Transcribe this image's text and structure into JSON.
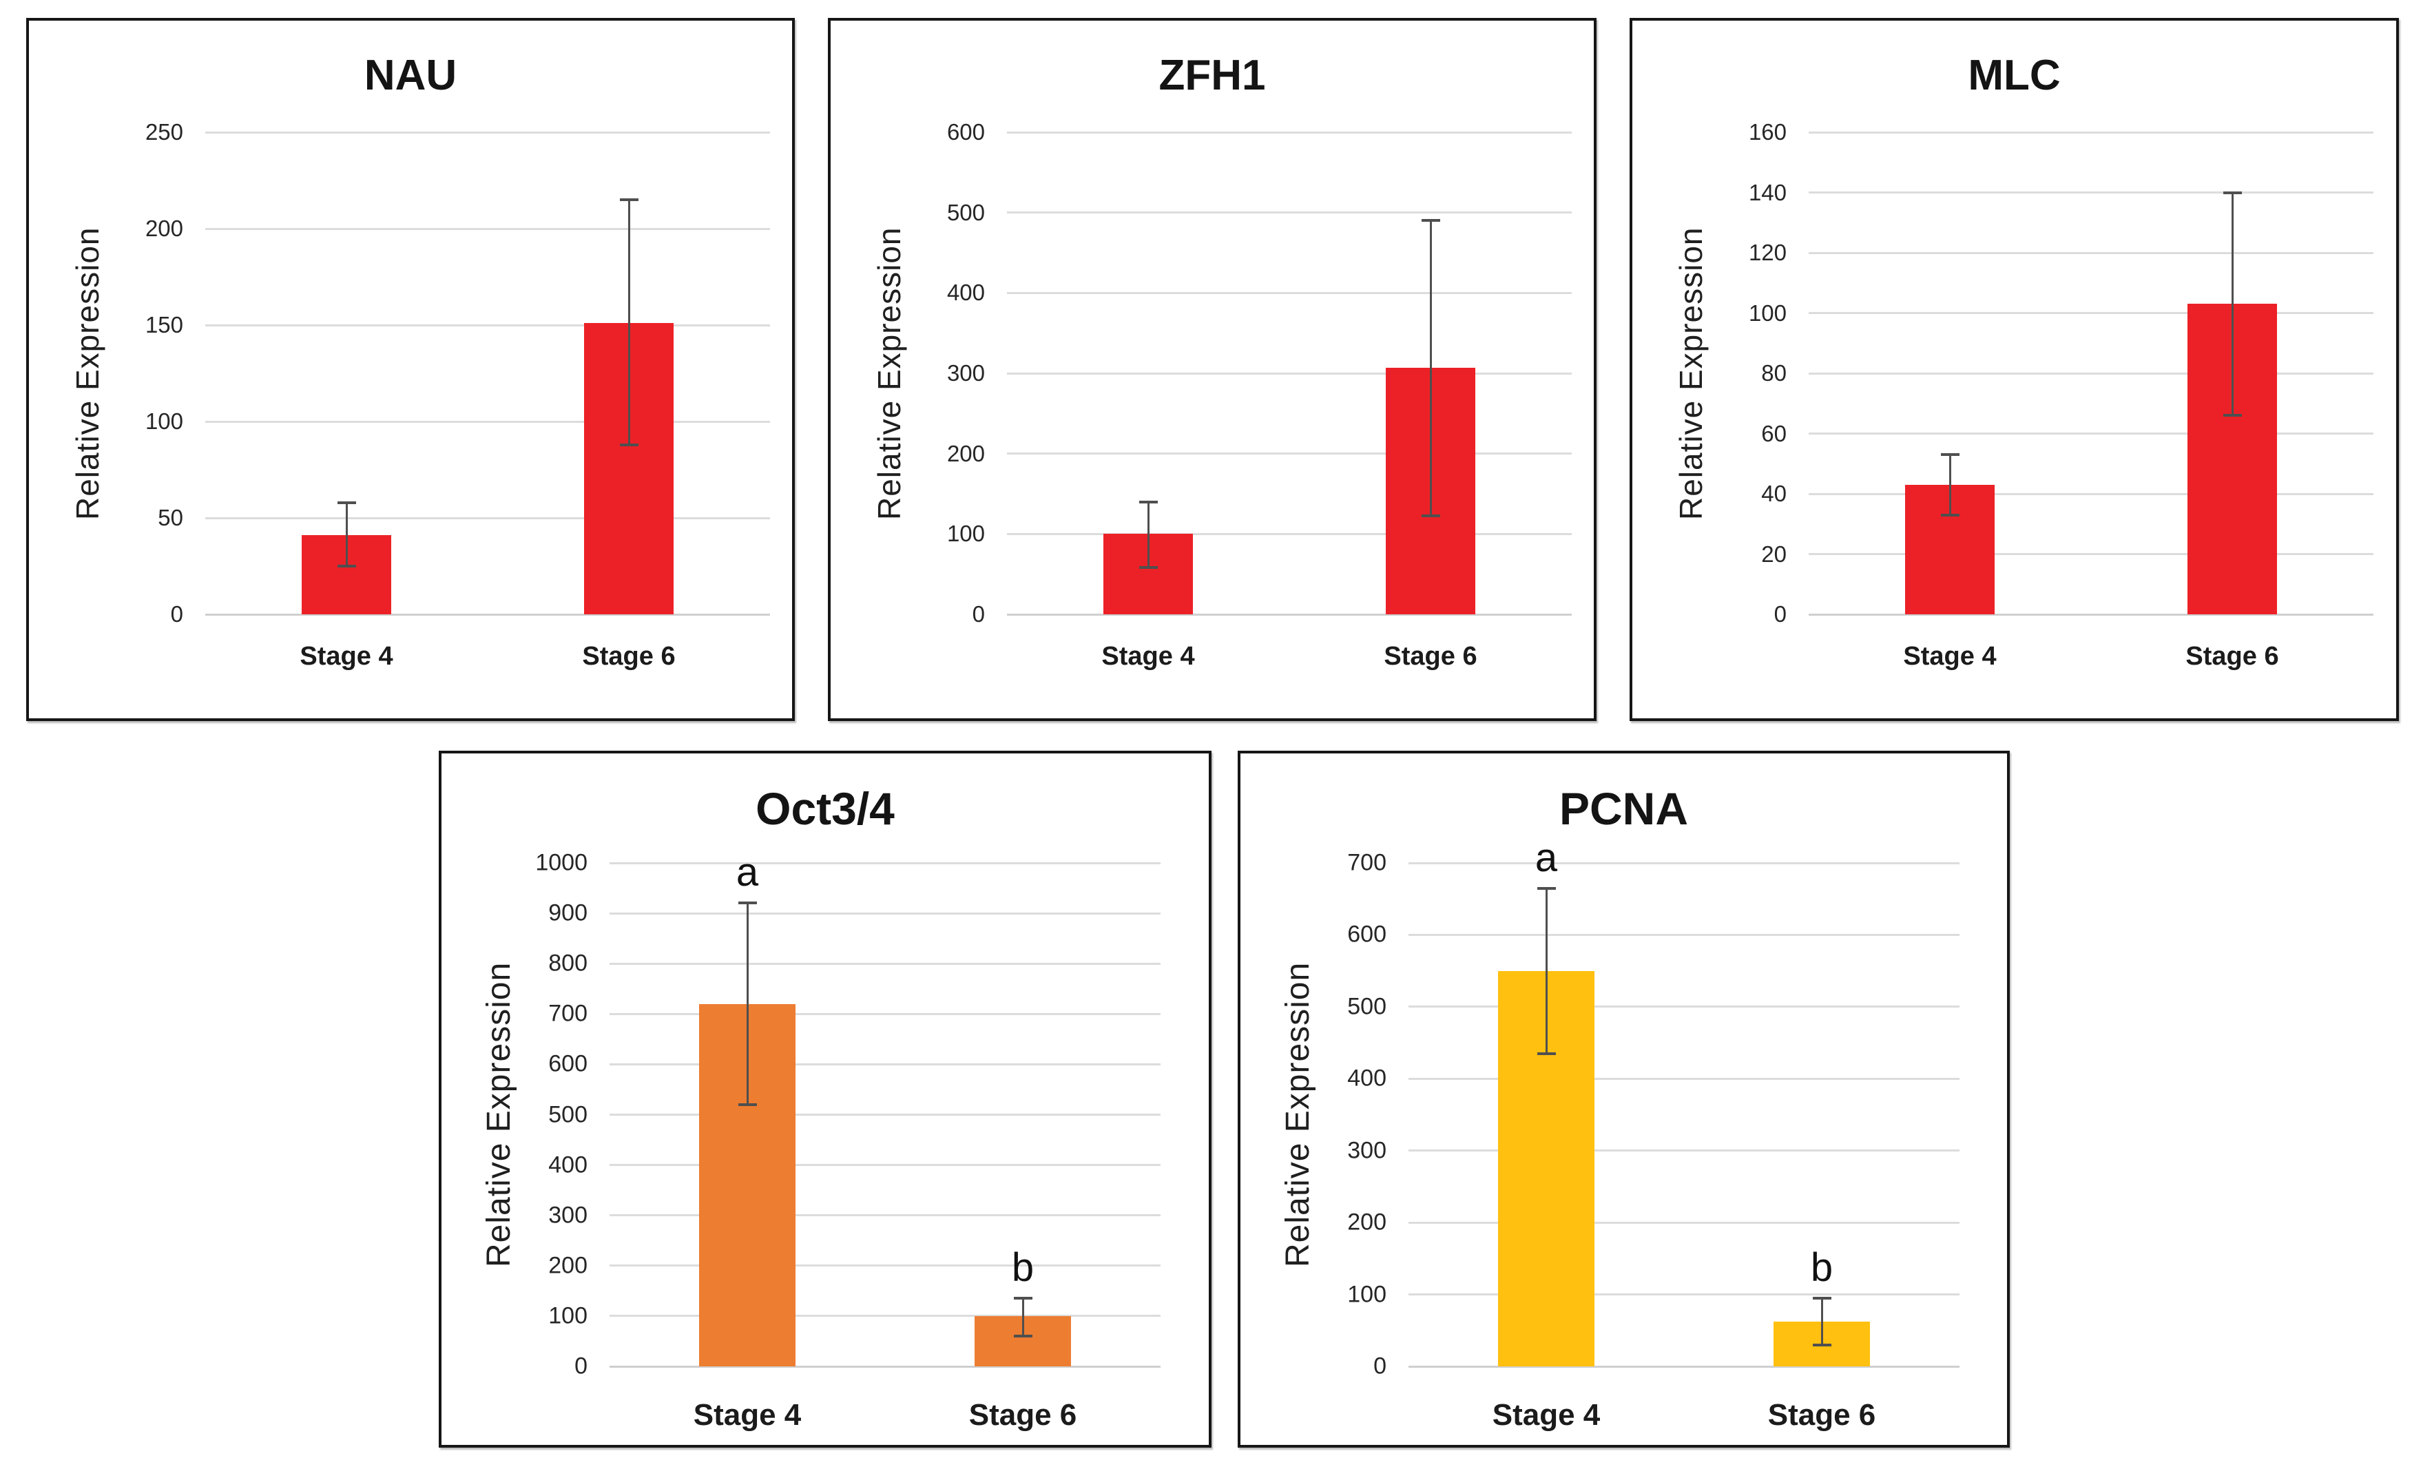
{
  "figure": {
    "ylabel": "Relative Expression",
    "categories": [
      "Stage 4",
      "Stage 6"
    ],
    "error_bar_color": "#4f4f4f",
    "gridline_color": "#dcdcdc"
  },
  "chart_data": [
    {
      "type": "bar",
      "title": "NAU",
      "ylabel": "Relative Expression",
      "categories": [
        "Stage 4",
        "Stage 6"
      ],
      "values": [
        41,
        151
      ],
      "error_low": [
        25,
        88
      ],
      "error_high": [
        58,
        215
      ],
      "sig_labels": [
        "",
        ""
      ],
      "ylim": [
        0,
        250
      ],
      "yticks": [
        0,
        50,
        100,
        150,
        200,
        250
      ],
      "bar_color": "#EC2127",
      "grid": true,
      "legend": false
    },
    {
      "type": "bar",
      "title": "ZFH1",
      "ylabel": "Relative Expression",
      "categories": [
        "Stage 4",
        "Stage 6"
      ],
      "values": [
        100,
        307
      ],
      "error_low": [
        58,
        123
      ],
      "error_high": [
        140,
        490
      ],
      "sig_labels": [
        "",
        ""
      ],
      "ylim": [
        0,
        600
      ],
      "yticks": [
        0,
        100,
        200,
        300,
        400,
        500,
        600
      ],
      "bar_color": "#EC2127",
      "grid": true,
      "legend": false
    },
    {
      "type": "bar",
      "title": "MLC",
      "ylabel": "Relative Expression",
      "categories": [
        "Stage 4",
        "Stage 6"
      ],
      "values": [
        43,
        103
      ],
      "error_low": [
        33,
        66
      ],
      "error_high": [
        53,
        140
      ],
      "sig_labels": [
        "",
        ""
      ],
      "ylim": [
        0,
        160
      ],
      "yticks": [
        0,
        20,
        40,
        60,
        80,
        100,
        120,
        140,
        160
      ],
      "bar_color": "#EC2127",
      "grid": true,
      "legend": false
    },
    {
      "type": "bar",
      "title": "Oct3/4",
      "ylabel": "Relative Expression",
      "categories": [
        "Stage 4",
        "Stage 6"
      ],
      "values": [
        720,
        100
      ],
      "error_low": [
        520,
        60
      ],
      "error_high": [
        920,
        135
      ],
      "sig_labels": [
        "a",
        "b"
      ],
      "ylim": [
        0,
        1000
      ],
      "yticks": [
        0,
        100,
        200,
        300,
        400,
        500,
        600,
        700,
        800,
        900,
        1000
      ],
      "bar_color": "#ED7D31",
      "grid": true,
      "legend": false
    },
    {
      "type": "bar",
      "title": "PCNA",
      "ylabel": "Relative Expression",
      "categories": [
        "Stage 4",
        "Stage 6"
      ],
      "values": [
        550,
        62
      ],
      "error_low": [
        435,
        30
      ],
      "error_high": [
        665,
        95
      ],
      "sig_labels": [
        "a",
        "b"
      ],
      "ylim": [
        0,
        700
      ],
      "yticks": [
        0,
        100,
        200,
        300,
        400,
        500,
        600,
        700
      ],
      "bar_color": "#FFC010",
      "grid": true,
      "legend": false
    }
  ]
}
